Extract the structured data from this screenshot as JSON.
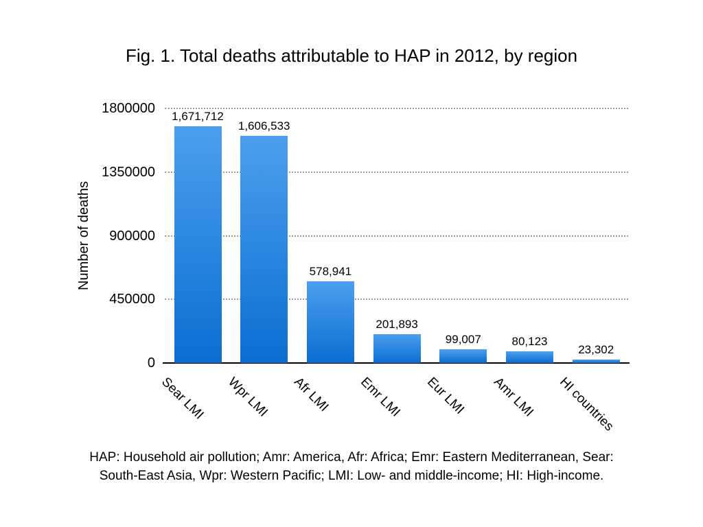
{
  "title": "Fig. 1. Total deaths attributable to HAP in 2012, by region",
  "footnote": {
    "line1": "HAP: Household air pollution; Amr: America, Afr: Africa; Emr: Eastern Mediterranean, Sear:",
    "line2": "South-East Asia, Wpr: Western Pacific; LMI: Low- and middle-income; HI: High-income."
  },
  "chart_data": {
    "type": "bar",
    "title": "Fig. 1. Total deaths attributable to HAP in 2012, by region",
    "categories": [
      "Sear LMI",
      "Wpr LMI",
      "Afr LMI",
      "Emr LMI",
      "Eur LMI",
      "Amr LMI",
      "HI countries"
    ],
    "values": [
      1671712,
      1606533,
      578941,
      201893,
      99007,
      80123,
      23302
    ],
    "value_labels": [
      "1,671,712",
      "1,606,533",
      "578,941",
      "201,893",
      "99,007",
      "80,123",
      "23,302"
    ],
    "xlabel": "",
    "ylabel": "Number of deaths",
    "ylim": [
      0,
      1800000
    ],
    "yticks": [
      0,
      450000,
      900000,
      1350000,
      1800000
    ],
    "ytick_labels": [
      "0",
      "450000",
      "900000",
      "1350000",
      "1800000"
    ],
    "grid": "horizontal-dotted",
    "legend": "none",
    "colors": {
      "bar_gradient_top": "#4C9FEE",
      "bar_gradient_bottom": "#0A6ED1",
      "gridline": "#9B9B9B",
      "axis_line": "#000000",
      "text": "#000000",
      "background": "#FFFFFF"
    }
  }
}
